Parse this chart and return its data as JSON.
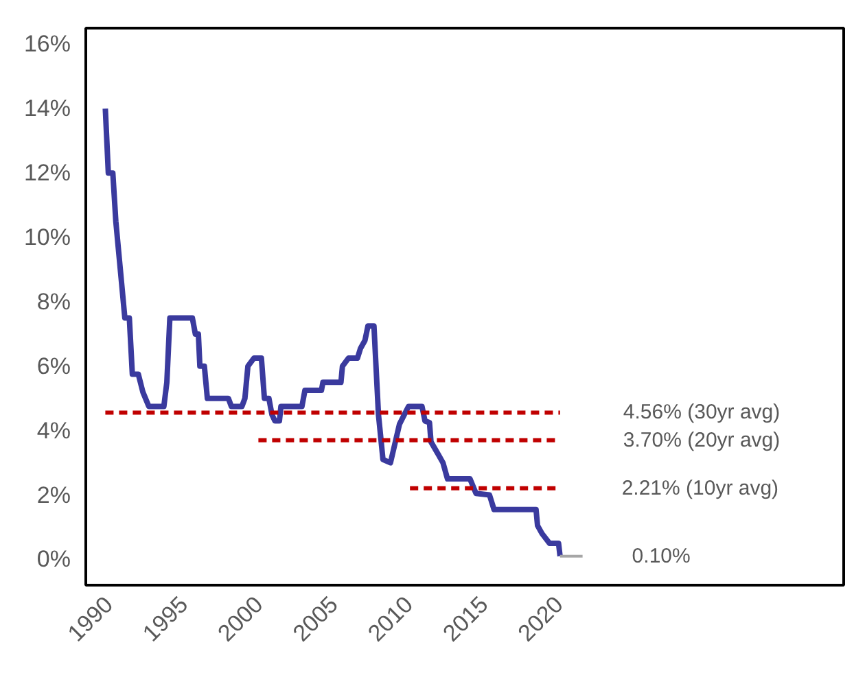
{
  "chart_data": {
    "type": "line",
    "xlim": [
      1988.5,
      2039
    ],
    "xticks": [
      1990,
      1995,
      2000,
      2005,
      2010,
      2015,
      2020
    ],
    "ylim": [
      -0.8,
      16.5
    ],
    "yticks": [
      {
        "value": 0,
        "label": "0%"
      },
      {
        "value": 2,
        "label": "2%"
      },
      {
        "value": 4,
        "label": "4%"
      },
      {
        "value": 6,
        "label": "6%"
      },
      {
        "value": 8,
        "label": "8%"
      },
      {
        "value": 10,
        "label": "10%"
      },
      {
        "value": 12,
        "label": "12%"
      },
      {
        "value": 14,
        "label": "14%"
      },
      {
        "value": 16,
        "label": "16%"
      }
    ],
    "grid": false,
    "legend": false,
    "line_style": "solid",
    "series": [
      {
        "color": "#3a3a9e",
        "x": [
          1989.8,
          1989.9,
          1990.0,
          1990.3,
          1990.5,
          1990.7,
          1990.9,
          1991.1,
          1991.4,
          1991.6,
          1992.0,
          1992.3,
          1992.7,
          1993.7,
          1993.9,
          1994.1,
          1995.6,
          1995.8,
          1996.0,
          1996.1,
          1996.4,
          1996.6,
          1998.0,
          1998.2,
          1998.9,
          1999.1,
          1999.3,
          1999.7,
          2000.2,
          2000.4,
          2000.7,
          2000.9,
          2001.1,
          2001.4,
          2001.5,
          2002.9,
          2003.1,
          2004.2,
          2004.3,
          2005.5,
          2005.6,
          2006.0,
          2006.6,
          2006.8,
          2007.1,
          2007.3,
          2007.7,
          2008.0,
          2008.3,
          2008.8,
          2009.4,
          2010.0,
          2010.9,
          2011.1,
          2011.4,
          2011.5,
          2012.0,
          2012.3,
          2012.6,
          2014.1,
          2014.5,
          2015.4,
          2015.7,
          2018.5,
          2018.6,
          2018.9,
          2019.4,
          2020.0,
          2020.1
        ],
        "values": [
          14.0,
          13.0,
          12.0,
          12.0,
          10.5,
          9.5,
          8.5,
          7.5,
          7.5,
          5.75,
          5.75,
          5.2,
          4.75,
          4.75,
          5.5,
          7.5,
          7.5,
          7.0,
          7.0,
          6.0,
          6.0,
          5.0,
          5.0,
          4.75,
          4.75,
          5.0,
          6.0,
          6.25,
          6.25,
          5.0,
          5.0,
          4.5,
          4.3,
          4.3,
          4.75,
          4.75,
          5.25,
          5.25,
          5.5,
          5.5,
          6.0,
          6.25,
          6.25,
          6.55,
          6.8,
          7.25,
          7.25,
          4.5,
          3.1,
          3.0,
          4.2,
          4.75,
          4.75,
          4.3,
          4.25,
          3.65,
          3.25,
          3.0,
          2.5,
          2.5,
          2.05,
          2.0,
          1.55,
          1.55,
          1.05,
          0.8,
          0.5,
          0.5,
          0.1
        ]
      },
      {
        "color": "#a6a6a6",
        "x": [
          2020.1,
          2021.6
        ],
        "values": [
          0.1,
          0.1
        ]
      },
      {
        "name": "4.56% (30yr avg)",
        "color": "#c00000",
        "line_style": "dashed",
        "x": [
          1989.8,
          2020.1
        ],
        "values": [
          4.56,
          4.56
        ]
      },
      {
        "name": "3.70% (20yr avg)",
        "color": "#c00000",
        "line_style": "dashed",
        "x": [
          2000.0,
          2020.1
        ],
        "values": [
          3.7,
          3.7
        ]
      },
      {
        "name": "2.21% (10yr avg)",
        "color": "#c00000",
        "line_style": "dashed",
        "x": [
          2010.1,
          2020.0
        ],
        "values": [
          2.21,
          2.21
        ]
      }
    ],
    "annotations": [
      {
        "text": "0.10%",
        "x": 2021.6,
        "y": 0.1
      }
    ]
  }
}
